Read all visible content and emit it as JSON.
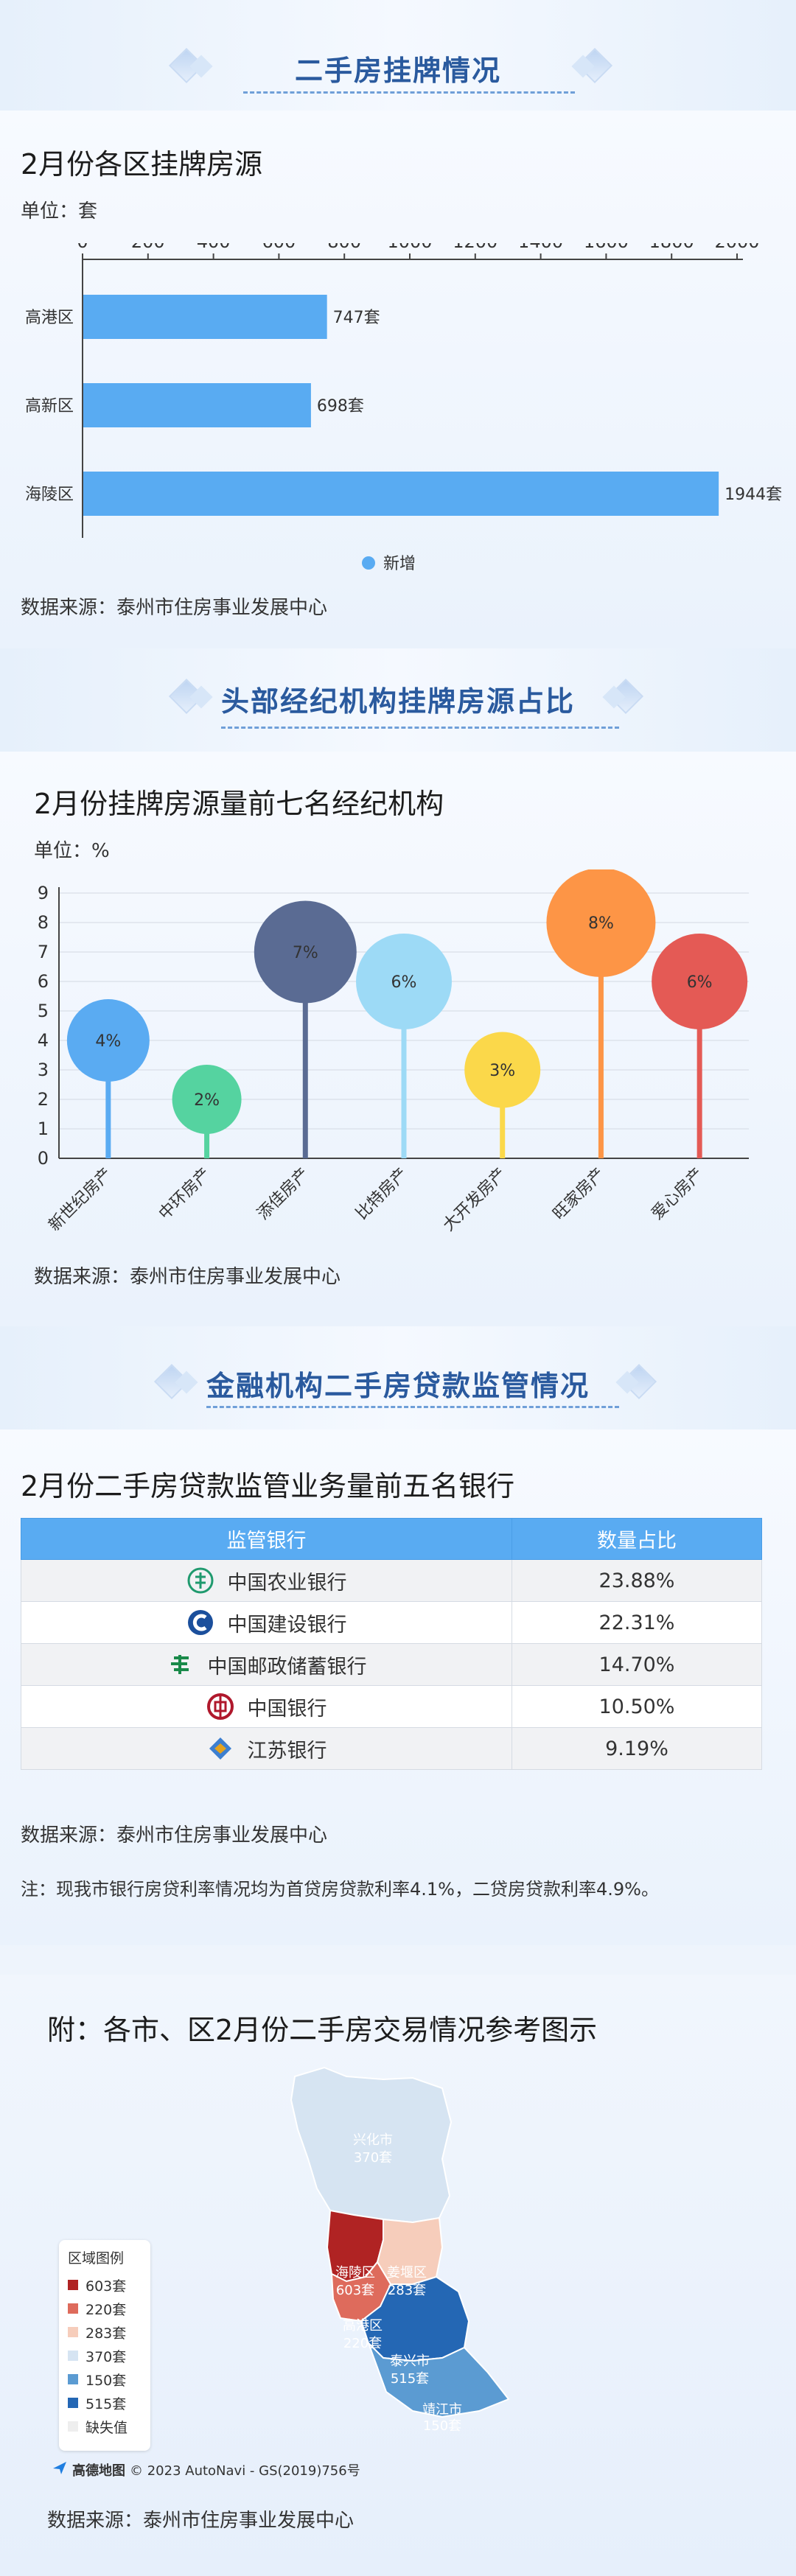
{
  "sections": {
    "s1_title": "二手房挂牌情况",
    "s2_title": "头部经纪机构挂牌房源占比",
    "s3_title": "金融机构二手房贷款监管情况"
  },
  "chart1": {
    "title": "2月份各区挂牌房源",
    "unit": "单位：套",
    "source": "数据来源：泰州市住房事业发展中心",
    "legend": "新增"
  },
  "chart2": {
    "title": "2月份挂牌房源量前七名经纪机构",
    "unit": "单位：%",
    "source": "数据来源：泰州市住房事业发展中心"
  },
  "table": {
    "title": "2月份二手房贷款监管业务量前五名银行",
    "headers": [
      "监管银行",
      "数量占比"
    ],
    "rows": [
      {
        "bank": "中国农业银行",
        "share": "23.88%",
        "logo": "abc-bank-icon",
        "color": "#1f9a6e"
      },
      {
        "bank": "中国建设银行",
        "share": "22.31%",
        "logo": "ccb-bank-icon",
        "color": "#1b4f9c"
      },
      {
        "bank": "中国邮政储蓄银行",
        "share": "14.70%",
        "logo": "psbc-bank-icon",
        "color": "#1a8a4a"
      },
      {
        "bank": "中国银行",
        "share": "10.50%",
        "logo": "boc-bank-icon",
        "color": "#b0182c"
      },
      {
        "bank": "江苏银行",
        "share": "9.19%",
        "logo": "jsb-bank-icon",
        "color": "#e5a21c"
      }
    ],
    "source": "数据来源：泰州市住房事业发展中心",
    "note": "注：现我市银行房贷利率情况均为首贷房贷款利率4.1%，二贷房贷款利率4.9%。"
  },
  "map": {
    "title": "附：各市、区2月份二手房交易情况参考图示",
    "legend_title": "区域图例",
    "legend": [
      {
        "label": "603套",
        "color": "#b02323"
      },
      {
        "label": "220套",
        "color": "#de6b5c"
      },
      {
        "label": "283套",
        "color": "#f6cdbb"
      },
      {
        "label": "370套",
        "color": "#d6e4f2"
      },
      {
        "label": "150套",
        "color": "#5b9bd2"
      },
      {
        "label": "515套",
        "color": "#2467b4"
      },
      {
        "label": "缺失值",
        "color": "#eeeeee"
      }
    ],
    "regions": [
      {
        "name": "兴化市",
        "value": "370套"
      },
      {
        "name": "海陵区",
        "value": "603套"
      },
      {
        "name": "姜堰区",
        "value": "283套"
      },
      {
        "name": "高港区",
        "value": "220套"
      },
      {
        "name": "泰兴市",
        "value": "515套"
      },
      {
        "name": "靖江市",
        "value": "150套"
      }
    ],
    "attribution_logo": "高德地图",
    "attribution": "© 2023 AutoNavi - GS(2019)756号",
    "source": "数据来源：泰州市住房事业发展中心"
  },
  "colors": {
    "accent": "#2a5a9e",
    "bar": "#59abf2"
  },
  "chart_data": [
    {
      "type": "bar",
      "orientation": "horizontal",
      "title": "2月份各区挂牌房源",
      "categories": [
        "高港区",
        "高新区",
        "海陵区"
      ],
      "series": [
        {
          "name": "新增",
          "values": [
            747,
            698,
            1944
          ]
        }
      ],
      "value_labels": [
        "747套",
        "698套",
        "1944套"
      ],
      "xticks": [
        "0",
        "200",
        "400",
        "600",
        "800",
        "1000",
        "1200",
        "1400",
        "1600",
        "1800",
        "2000"
      ],
      "xlim": [
        0,
        2000
      ],
      "legend_position": "bottom"
    },
    {
      "type": "scatter",
      "style": "lollipop",
      "title": "2月份挂牌房源量前七名经纪机构",
      "categories": [
        "新世纪房产",
        "中环房产",
        "添佳房产",
        "比特房产",
        "大开发房产",
        "旺家房产",
        "爱心房产"
      ],
      "values": [
        4,
        2,
        7,
        6,
        3,
        8,
        6
      ],
      "labels": [
        "4%",
        "2%",
        "7%",
        "6%",
        "3%",
        "8%",
        "6%"
      ],
      "colors": [
        "#5aabf2",
        "#55d3a0",
        "#5a6b93",
        "#9ddaf6",
        "#fbd84a",
        "#fd9546",
        "#e45a55"
      ],
      "yticks": [
        "0",
        "1",
        "2",
        "3",
        "4",
        "5",
        "6",
        "7",
        "8",
        "9"
      ],
      "ylim": [
        0,
        9
      ],
      "grid": true
    }
  ]
}
